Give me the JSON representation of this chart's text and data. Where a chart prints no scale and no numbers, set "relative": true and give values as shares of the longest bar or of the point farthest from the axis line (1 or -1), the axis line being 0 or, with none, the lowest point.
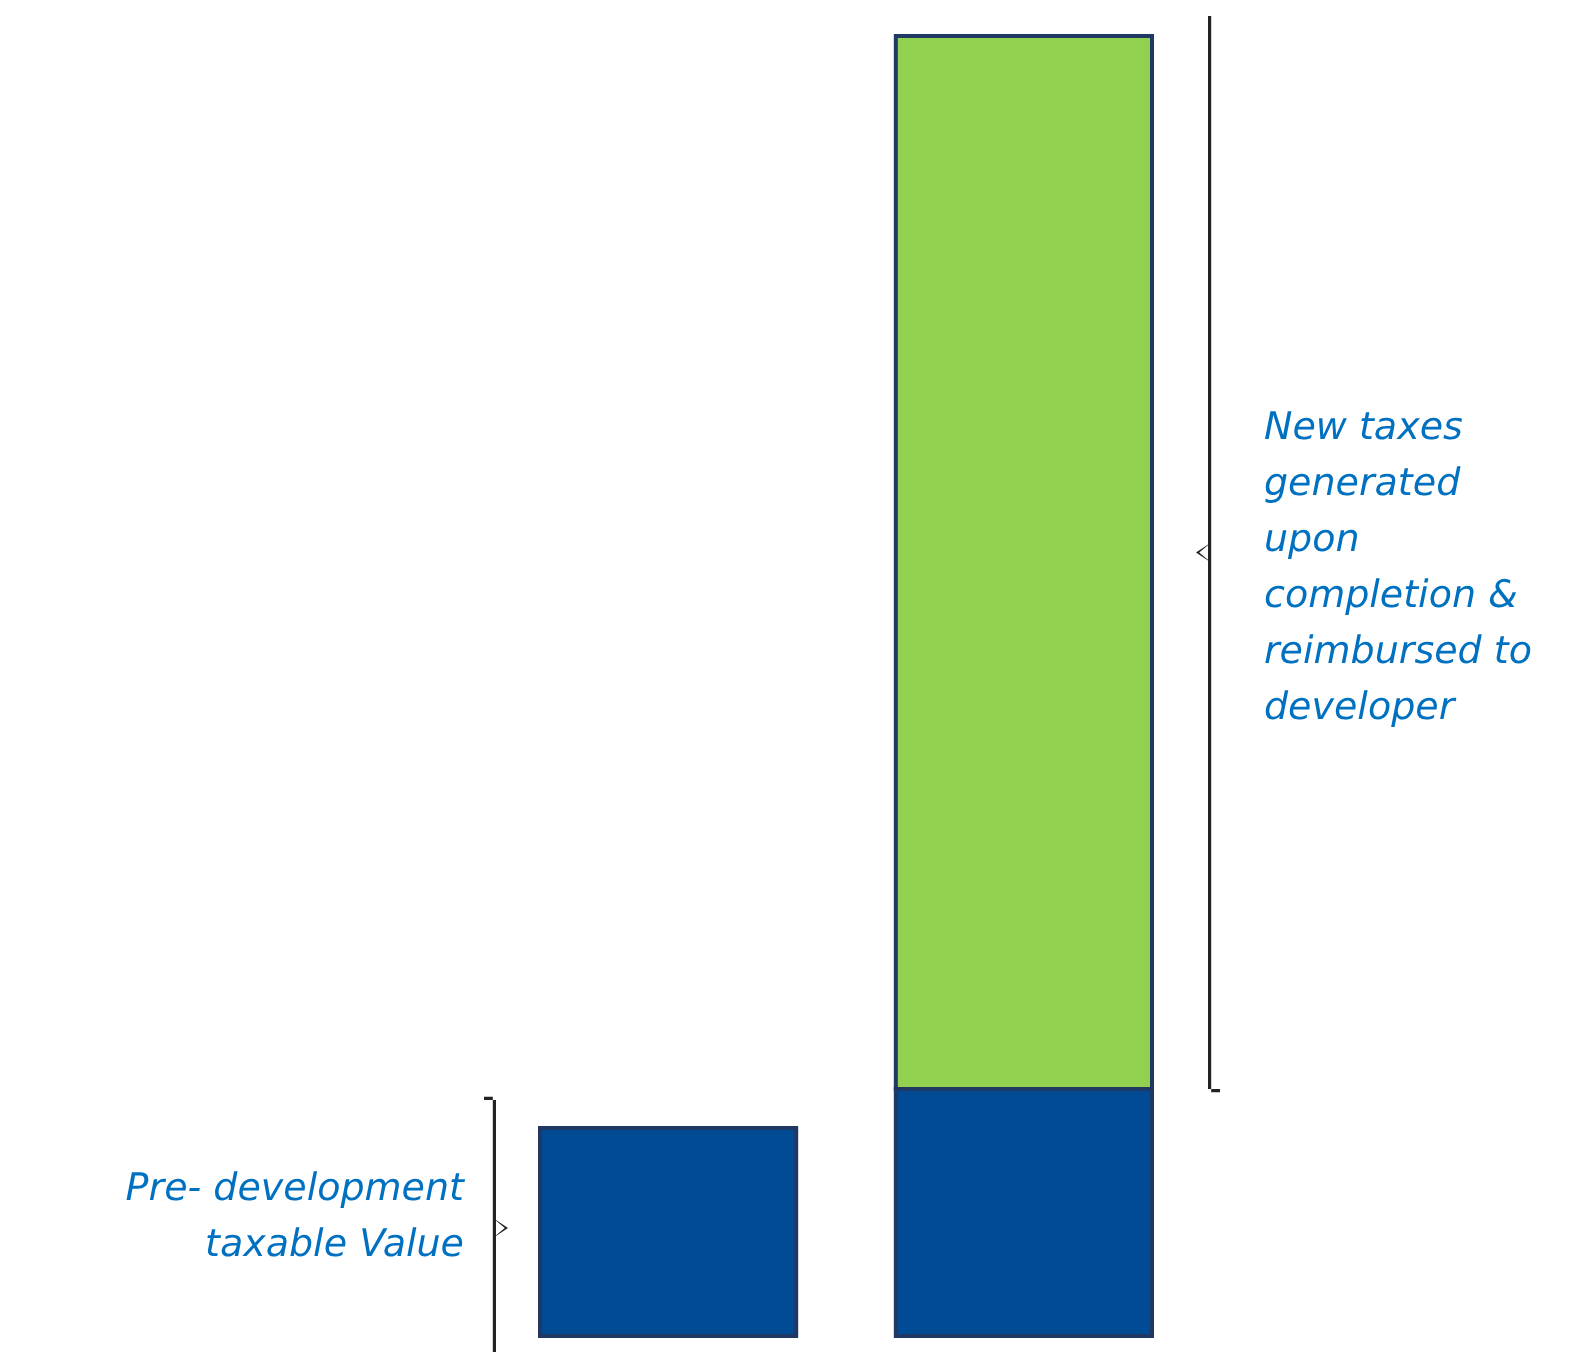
{
  "chart_data": {
    "type": "bar",
    "relative": true,
    "stacked": true,
    "categories": [
      null,
      null
    ],
    "series": [
      {
        "color": "#004b93",
        "values": [
          0.16,
          0.19
        ]
      },
      {
        "color": "#92d050",
        "values": [
          0,
          0.81
        ]
      }
    ],
    "annotations": [
      "Pre- development taxable Value",
      "New taxes generated upon completion & reimbursed to developer"
    ]
  }
}
